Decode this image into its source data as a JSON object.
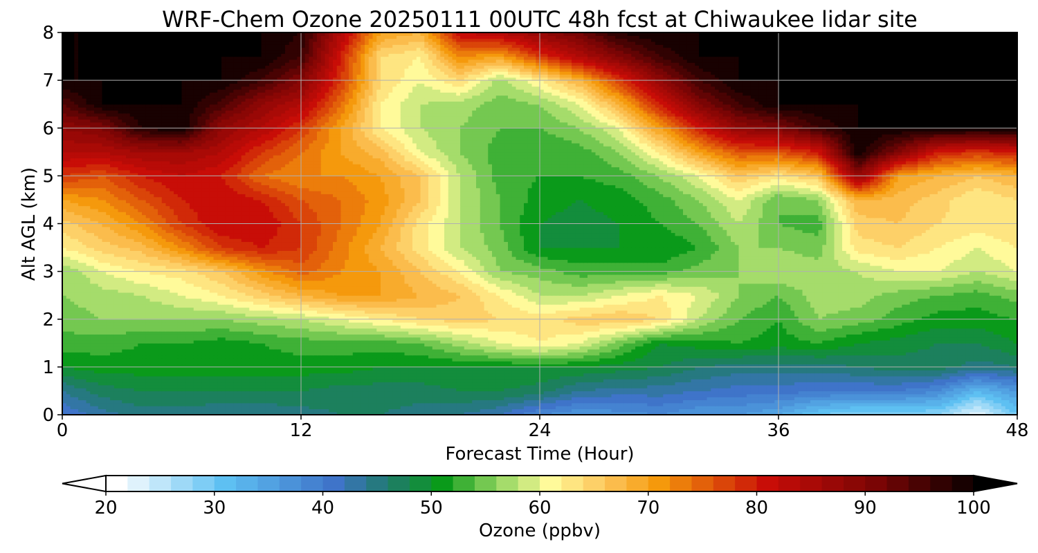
{
  "chart_data": {
    "type": "heatmap",
    "title": "WRF-Chem Ozone  20250111 00UTC 48h fcst at Chiwaukee lidar site",
    "xlabel": "Forecast Time (Hour)",
    "ylabel": "Alt AGL (km)",
    "xlim": [
      0,
      48
    ],
    "ylim": [
      0,
      8
    ],
    "xticks": [
      "0",
      "12",
      "24",
      "36",
      "48"
    ],
    "yticks": [
      "0",
      "1",
      "2",
      "3",
      "4",
      "5",
      "6",
      "7",
      "8"
    ],
    "grid": true,
    "x": [
      0,
      2,
      4,
      6,
      8,
      10,
      12,
      14,
      16,
      18,
      20,
      22,
      24,
      26,
      28,
      30,
      32,
      34,
      36,
      38,
      40,
      42,
      44,
      46,
      48
    ],
    "y": [
      0,
      0.5,
      1,
      1.5,
      2,
      2.5,
      3,
      3.5,
      4,
      4.5,
      5,
      5.5,
      6,
      6.5,
      7,
      7.5,
      8
    ],
    "z_ppbv": [
      [
        40,
        43,
        45,
        45,
        44,
        44,
        45,
        46,
        46,
        45,
        44,
        42,
        38,
        36,
        37,
        38,
        36,
        36,
        34,
        30,
        28,
        28,
        28,
        22,
        30
      ],
      [
        44,
        47,
        48,
        48,
        48,
        48,
        48,
        47,
        47,
        47,
        48,
        48,
        47,
        44,
        43,
        43,
        42,
        41,
        41,
        40,
        40,
        40,
        38,
        32,
        36
      ],
      [
        50,
        51,
        51,
        51,
        51,
        51,
        51,
        51,
        50,
        50,
        50,
        50,
        50,
        50,
        49,
        48,
        46,
        45,
        45,
        45,
        46,
        47,
        47,
        45,
        46
      ],
      [
        53,
        53,
        52,
        52,
        51,
        52,
        53,
        53,
        53,
        54,
        57,
        60,
        62,
        60,
        55,
        50,
        51,
        52,
        51,
        52,
        50,
        49,
        48,
        48,
        50
      ],
      [
        55,
        56,
        56,
        56,
        56,
        57,
        58,
        60,
        62,
        64,
        65,
        64,
        63,
        65,
        66,
        64,
        58,
        54,
        52,
        56,
        55,
        53,
        51,
        51,
        52
      ],
      [
        56,
        57,
        58,
        60,
        62,
        65,
        68,
        70,
        70,
        68,
        66,
        62,
        58,
        58,
        60,
        62,
        60,
        56,
        54,
        57,
        57,
        55,
        54,
        53,
        55
      ],
      [
        56,
        60,
        62,
        63,
        66,
        71,
        75,
        72,
        70,
        66,
        62,
        56,
        55,
        53,
        53,
        53,
        55,
        56,
        58,
        57,
        58,
        60,
        60,
        58,
        60
      ],
      [
        62,
        65,
        67,
        72,
        78,
        80,
        78,
        73,
        68,
        63,
        58,
        55,
        50,
        50,
        50,
        50,
        52,
        56,
        56,
        55,
        63,
        64,
        62,
        60,
        62
      ],
      [
        65,
        68,
        72,
        78,
        82,
        82,
        78,
        74,
        70,
        63,
        58,
        54,
        50,
        49,
        50,
        52,
        54,
        58,
        54,
        53,
        65,
        66,
        64,
        63,
        64
      ],
      [
        70,
        72,
        76,
        80,
        82,
        80,
        76,
        74,
        71,
        66,
        58,
        54,
        51,
        50,
        51,
        53,
        56,
        60,
        54,
        56,
        68,
        67,
        65,
        62,
        64
      ],
      [
        78,
        76,
        80,
        82,
        80,
        74,
        72,
        72,
        70,
        66,
        58,
        53,
        52,
        52,
        53,
        56,
        60,
        66,
        63,
        66,
        88,
        70,
        68,
        66,
        68
      ],
      [
        84,
        84,
        86,
        86,
        84,
        78,
        74,
        70,
        67,
        60,
        56,
        53,
        52,
        53,
        56,
        62,
        70,
        76,
        76,
        80,
        100,
        90,
        80,
        78,
        80
      ],
      [
        88,
        90,
        98,
        100,
        88,
        84,
        78,
        70,
        62,
        58,
        56,
        54,
        54,
        56,
        60,
        70,
        80,
        88,
        90,
        96,
        100,
        100,
        100,
        100,
        100
      ],
      [
        94,
        100,
        100,
        100,
        95,
        88,
        84,
        74,
        62,
        58,
        57,
        55,
        56,
        60,
        68,
        80,
        90,
        96,
        100,
        100,
        100,
        100,
        100,
        100,
        100
      ],
      [
        100,
        100,
        100,
        100,
        100,
        96,
        90,
        78,
        64,
        60,
        64,
        57,
        62,
        68,
        78,
        88,
        96,
        100,
        100,
        100,
        100,
        100,
        100,
        100,
        100
      ],
      [
        100,
        100,
        100,
        100,
        100,
        100,
        96,
        80,
        64,
        62,
        72,
        70,
        78,
        84,
        90,
        96,
        100,
        100,
        100,
        100,
        100,
        100,
        100,
        100,
        100
      ],
      [
        100,
        100,
        100,
        100,
        100,
        100,
        98,
        84,
        70,
        68,
        82,
        84,
        88,
        92,
        98,
        100,
        100,
        100,
        100,
        100,
        100,
        100,
        100,
        100,
        100
      ]
    ],
    "colorbar": {
      "label": "Ozone  (ppbv)",
      "min": 20,
      "max": 100,
      "ticks": [
        "20",
        "30",
        "40",
        "50",
        "60",
        "70",
        "80",
        "90",
        "100"
      ],
      "extend": "both",
      "anchors": [
        {
          "v": 20,
          "c": "#ffffff"
        },
        {
          "v": 30,
          "c": "#5ec0f2"
        },
        {
          "v": 40,
          "c": "#3f74c9"
        },
        {
          "v": 45,
          "c": "#207a6e"
        },
        {
          "v": 50,
          "c": "#0a9a1a"
        },
        {
          "v": 55,
          "c": "#8fd45f"
        },
        {
          "v": 60,
          "c": "#fffa9a"
        },
        {
          "v": 65,
          "c": "#fcc55c"
        },
        {
          "v": 70,
          "c": "#f5990c"
        },
        {
          "v": 80,
          "c": "#c80d07"
        },
        {
          "v": 90,
          "c": "#7a0505"
        },
        {
          "v": 100,
          "c": "#000000"
        }
      ]
    }
  }
}
